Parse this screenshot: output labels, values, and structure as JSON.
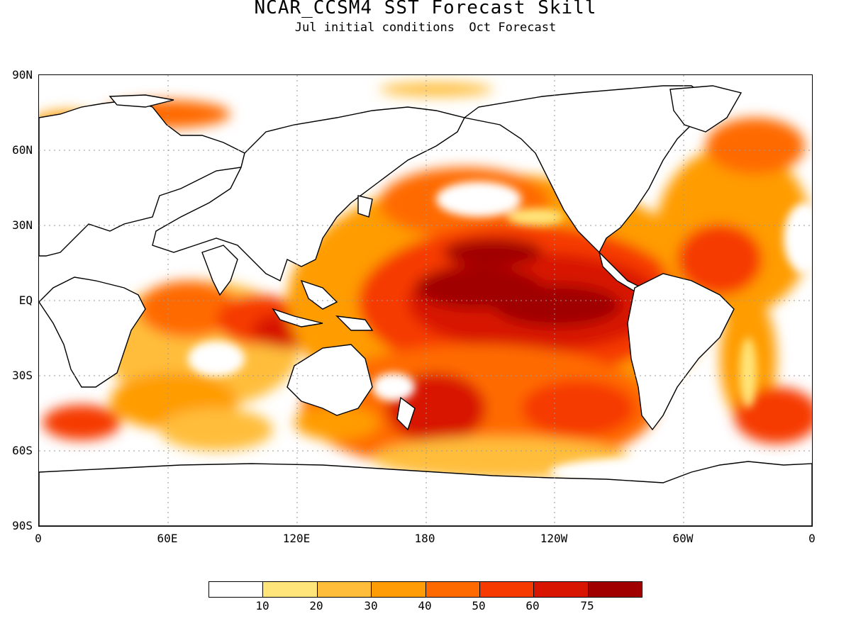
{
  "title": "NCAR_CCSM4 SST Forecast Skill",
  "subtitle": "Jul initial conditions  Oct Forecast",
  "lat_labels": [
    "90N",
    "60N",
    "30N",
    "EQ",
    "30S",
    "60S",
    "90S"
  ],
  "lon_labels": [
    "0",
    "60E",
    "120E",
    "180",
    "120W",
    "60W",
    "0"
  ],
  "colorbar": {
    "colors": [
      "#ffffff",
      "#ffe57a",
      "#ffbd3a",
      "#ff9c06",
      "#ff6a00",
      "#f63a00",
      "#d81500",
      "#a00000"
    ],
    "labels": [
      "10",
      "20",
      "30",
      "40",
      "50",
      "60",
      "75"
    ]
  },
  "colors": {
    "land": "#ffffff",
    "coast": "#000000",
    "grid": "#9a9a9a"
  }
}
